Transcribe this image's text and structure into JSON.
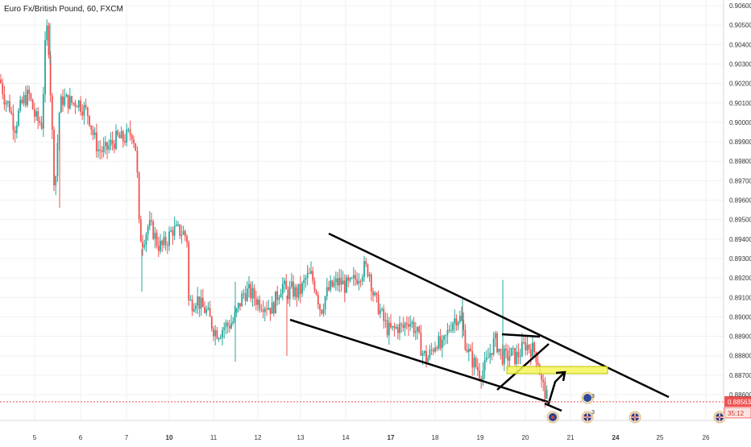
{
  "title": "Euro Fx/British Pound, 60, FXCM",
  "colors": {
    "up": "#26a69a",
    "down": "#ef5350",
    "grid": "#eef0f3",
    "axis_text": "#333333",
    "price_line": "#ef5350",
    "price_badge": "#ef5350",
    "timer_badge": "#ef5350",
    "highlight_fill": "#f5f55a",
    "drawing": "#000000"
  },
  "price_axis": {
    "ticks": [
      "0.90600",
      "0.90500",
      "0.90400",
      "0.90300",
      "0.90200",
      "0.90100",
      "0.90000",
      "0.89900",
      "0.89800",
      "0.89700",
      "0.89600",
      "0.89500",
      "0.89400",
      "0.89300",
      "0.89200",
      "0.89100",
      "0.89000",
      "0.88900",
      "0.88800",
      "0.88700",
      "0.88600"
    ],
    "current_price": "0.88563",
    "timer": "35:12"
  },
  "time_axis": {
    "labels": [
      "5",
      "6",
      "7",
      "10",
      "11",
      "12",
      "13",
      "14",
      "17",
      "18",
      "19",
      "20",
      "21",
      "24",
      "25",
      "26"
    ],
    "bold": [
      "10",
      "17",
      "24"
    ]
  },
  "events": {
    "count_label": "3",
    "count_label_2": "3"
  },
  "chart_data": {
    "type": "candlestick",
    "symbol": "Euro Fx/British Pound",
    "interval": "60",
    "source": "FXCM",
    "ylim": [
      0.8852,
      0.9061
    ],
    "grid": true,
    "last_price": 0.88563,
    "anchors": [
      [
        0,
        0.9022
      ],
      [
        6,
        0.9012
      ],
      [
        12,
        0.9008
      ],
      [
        18,
        0.8997
      ],
      [
        24,
        0.9006
      ],
      [
        30,
        0.9012
      ],
      [
        36,
        0.9014
      ],
      [
        44,
        0.9002
      ],
      [
        52,
        0.8999
      ],
      [
        56,
        0.9038
      ],
      [
        58,
        0.9048
      ],
      [
        60,
        0.9043
      ],
      [
        64,
        0.9002
      ],
      [
        68,
        0.8962
      ],
      [
        70,
        0.898
      ],
      [
        74,
        0.9008
      ],
      [
        78,
        0.9012
      ],
      [
        84,
        0.9011
      ],
      [
        90,
        0.901
      ],
      [
        96,
        0.9011
      ],
      [
        104,
        0.9007
      ],
      [
        110,
        0.9004
      ],
      [
        116,
        0.8993
      ],
      [
        122,
        0.8986
      ],
      [
        130,
        0.8985
      ],
      [
        138,
        0.8989
      ],
      [
        146,
        0.8992
      ],
      [
        152,
        0.8991
      ],
      [
        158,
        0.8993
      ],
      [
        164,
        0.8995
      ],
      [
        168,
        0.8988
      ],
      [
        170,
        0.8978
      ],
      [
        172,
        0.8948
      ],
      [
        176,
        0.8938
      ],
      [
        180,
        0.8942
      ],
      [
        184,
        0.8947
      ],
      [
        190,
        0.8944
      ],
      [
        196,
        0.8937
      ],
      [
        202,
        0.8936
      ],
      [
        208,
        0.894
      ],
      [
        214,
        0.8945
      ],
      [
        220,
        0.8944
      ],
      [
        224,
        0.8944
      ],
      [
        228,
        0.8943
      ],
      [
        232,
        0.894
      ],
      [
        234,
        0.8908
      ],
      [
        238,
        0.8907
      ],
      [
        244,
        0.891
      ],
      [
        250,
        0.8905
      ],
      [
        256,
        0.8903
      ],
      [
        262,
        0.8897
      ],
      [
        266,
        0.8893
      ],
      [
        272,
        0.8892
      ],
      [
        278,
        0.8895
      ],
      [
        284,
        0.8896
      ],
      [
        290,
        0.8898
      ],
      [
        296,
        0.8905
      ],
      [
        302,
        0.8912
      ],
      [
        308,
        0.8913
      ],
      [
        314,
        0.8911
      ],
      [
        320,
        0.8908
      ],
      [
        326,
        0.8907
      ],
      [
        332,
        0.8906
      ],
      [
        338,
        0.8904
      ],
      [
        344,
        0.8911
      ],
      [
        350,
        0.8917
      ],
      [
        356,
        0.8912
      ],
      [
        362,
        0.8914
      ],
      [
        368,
        0.8912
      ],
      [
        374,
        0.8914
      ],
      [
        380,
        0.892
      ],
      [
        386,
        0.8921
      ],
      [
        392,
        0.8915
      ],
      [
        398,
        0.8903
      ],
      [
        404,
        0.8911
      ],
      [
        410,
        0.8915
      ],
      [
        416,
        0.8917
      ],
      [
        422,
        0.8918
      ],
      [
        428,
        0.8916
      ],
      [
        434,
        0.8916
      ],
      [
        440,
        0.8919
      ],
      [
        446,
        0.8922
      ],
      [
        452,
        0.8925
      ],
      [
        458,
        0.8924
      ],
      [
        464,
        0.891
      ],
      [
        470,
        0.8905
      ],
      [
        476,
        0.8898
      ],
      [
        482,
        0.8893
      ],
      [
        488,
        0.8893
      ],
      [
        494,
        0.8895
      ],
      [
        500,
        0.8894
      ],
      [
        506,
        0.8899
      ],
      [
        512,
        0.8896
      ],
      [
        518,
        0.8891
      ],
      [
        524,
        0.8882
      ],
      [
        530,
        0.8878
      ],
      [
        536,
        0.8883
      ],
      [
        542,
        0.8888
      ],
      [
        548,
        0.8883
      ],
      [
        554,
        0.889
      ],
      [
        560,
        0.8897
      ],
      [
        566,
        0.89
      ],
      [
        572,
        0.8899
      ],
      [
        578,
        0.8886
      ],
      [
        584,
        0.8879
      ],
      [
        590,
        0.8875
      ],
      [
        596,
        0.8871
      ],
      [
        602,
        0.8874
      ],
      [
        606,
        0.8879
      ],
      [
        610,
        0.8884
      ],
      [
        614,
        0.8888
      ],
      [
        618,
        0.8885
      ],
      [
        622,
        0.888
      ],
      [
        628,
        0.8879
      ],
      [
        634,
        0.8881
      ],
      [
        640,
        0.8879
      ],
      [
        646,
        0.8882
      ],
      [
        652,
        0.8886
      ],
      [
        658,
        0.8884
      ],
      [
        664,
        0.8882
      ],
      [
        668,
        0.8877
      ],
      [
        672,
        0.8866
      ],
      [
        676,
        0.8862
      ],
      [
        680,
        0.8856
      ]
    ],
    "x_range": [
      0,
      680
    ]
  }
}
